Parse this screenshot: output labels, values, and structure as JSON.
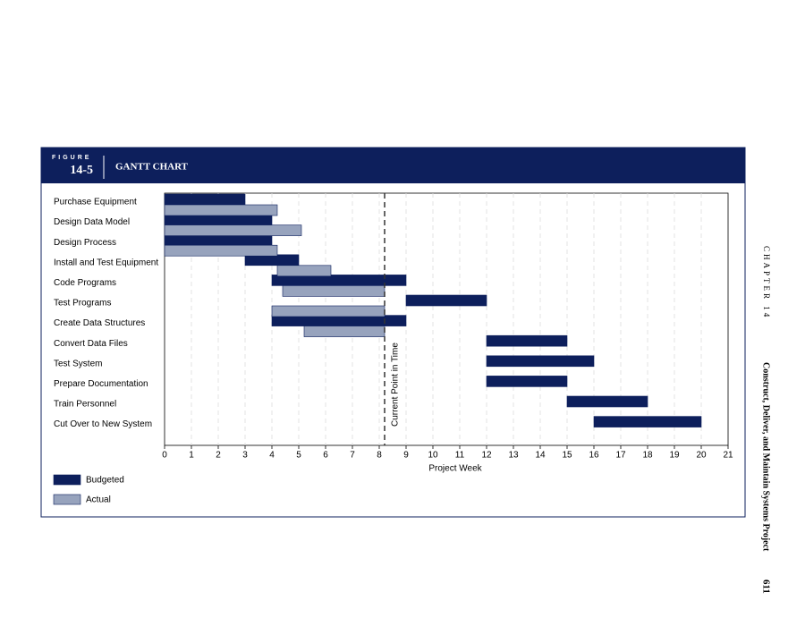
{
  "page": {
    "figure_label": "FIGURE",
    "figure_number": "14-5",
    "figure_title": "GANTT CHART",
    "chapter": "CHAPTER 14",
    "chapter_title": "Construct, Deliver, and Maintain Systems Project",
    "page_number": "611"
  },
  "chart_data": {
    "type": "gantt",
    "categories": [
      "Purchase Equipment",
      "Design Data Model",
      "Design Process",
      "Install and Test Equipment",
      "Code Programs",
      "Test Programs",
      "Create Data Structures",
      "Convert Data Files",
      "Test System",
      "Prepare Documentation",
      "Train Personnel",
      "Cut Over to New System"
    ],
    "series": [
      {
        "name": "Budgeted",
        "color": "#0d1f5c",
        "start": [
          0,
          0,
          0,
          3,
          4,
          9,
          4,
          12,
          12,
          12,
          15,
          16
        ],
        "end": [
          3,
          4,
          4,
          5,
          9,
          12,
          9,
          15,
          16,
          15,
          18,
          20
        ]
      },
      {
        "name": "Actual",
        "color": "#97a3bd",
        "start": [
          0,
          0,
          0,
          4.2,
          4.4,
          4,
          5.2,
          null,
          null,
          null,
          null,
          null
        ],
        "end": [
          4.2,
          5.1,
          4.2,
          6.2,
          8.2,
          8.2,
          8.2,
          null,
          null,
          null,
          null,
          null
        ]
      }
    ],
    "xlabel": "Project Week",
    "xlim": [
      0,
      21
    ],
    "xticks": [
      0,
      1,
      2,
      3,
      4,
      5,
      6,
      7,
      8,
      9,
      10,
      11,
      12,
      13,
      14,
      15,
      16,
      17,
      18,
      19,
      20,
      21
    ],
    "grid": true,
    "current_point": {
      "value": 8.2,
      "label": "Current Point in Time"
    }
  }
}
